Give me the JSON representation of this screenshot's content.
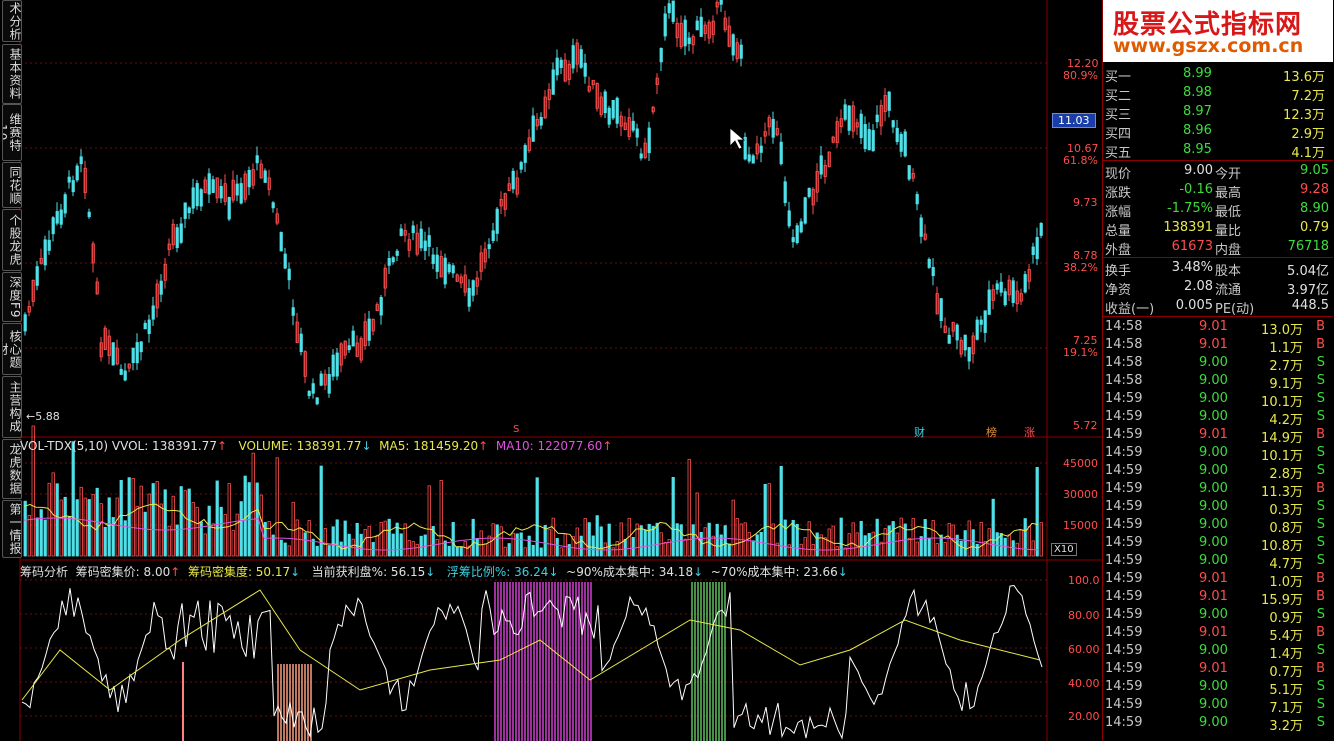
{
  "sidebar": {
    "tabs": [
      "术分析",
      "基本资料",
      "维赛特10",
      "同花顺",
      "个股龙虎",
      "深度F9",
      "核心题材",
      "主营构成",
      "龙虎数据",
      "第一情报"
    ]
  },
  "price_axis": [
    "12.20",
    "80.9%",
    "10.67",
    "61.8%",
    "9.73",
    "8.78",
    "38.2%",
    "7.25",
    "19.1%",
    "5.72"
  ],
  "current_price_tag": "11.03",
  "low_marker": "5.88",
  "event_markers": {
    "s": "S",
    "cai": "财",
    "bang": "榜",
    "zhang": "涨"
  },
  "volume_panel": {
    "name": "VOL-TDX(5,10)",
    "vvol": "VVOL: 138391.77",
    "volume": "VOLUME: 138391.77",
    "ma5": "MA5: 181459.20",
    "ma10": "MA10: 122077.60",
    "axis": [
      "45000",
      "30000",
      "15000"
    ],
    "unit": "X10"
  },
  "chip_panel": {
    "name": "筹码分析",
    "price": "筹码密集价: 8.00",
    "density": "筹码密集度: 50.17",
    "profit": "当前获利盘%: 56.15",
    "float": "浮筹比例%: 36.24",
    "c90": "~90%成本集中: 34.18",
    "c70": "~70%成本集中: 23.66",
    "axis": [
      "100.0",
      "80.00",
      "60.00",
      "40.00",
      "20.00"
    ]
  },
  "logo": {
    "title": "股票公式指标网",
    "url": "www.gszx.com.cn"
  },
  "quotes": {
    "bids": [
      {
        "label": "买一",
        "price": "8.99",
        "vol": "13.6万"
      },
      {
        "label": "买二",
        "price": "8.98",
        "vol": "7.2万"
      },
      {
        "label": "买三",
        "price": "8.97",
        "vol": "12.3万"
      },
      {
        "label": "买四",
        "price": "8.96",
        "vol": "2.9万"
      },
      {
        "label": "买五",
        "price": "8.95",
        "vol": "4.1万"
      }
    ],
    "stats": [
      {
        "l1": "现价",
        "v1": "9.00",
        "l2": "今开",
        "v2": "9.05"
      },
      {
        "l1": "涨跌",
        "v1": "-0.16",
        "l2": "最高",
        "v2": "9.28"
      },
      {
        "l1": "涨幅",
        "v1": "-1.75%",
        "l2": "最低",
        "v2": "8.90"
      },
      {
        "l1": "总量",
        "v1": "138391",
        "l2": "量比",
        "v2": "0.79"
      },
      {
        "l1": "外盘",
        "v1": "61673",
        "l2": "内盘",
        "v2": "76718"
      }
    ],
    "stats2": [
      {
        "l1": "换手",
        "v1": "3.48%",
        "l2": "股本",
        "v2": "5.04亿"
      },
      {
        "l1": "净资",
        "v1": "2.08",
        "l2": "流通",
        "v2": "3.97亿"
      },
      {
        "l1": "收益(一)",
        "v1": "0.005",
        "l2": "PE(动)",
        "v2": "448.5"
      }
    ]
  },
  "ticks": [
    {
      "t": "14:58",
      "p": "9.01",
      "v": "13.0万",
      "s": "B"
    },
    {
      "t": "14:58",
      "p": "9.01",
      "v": "1.1万",
      "s": "B"
    },
    {
      "t": "14:58",
      "p": "9.00",
      "v": "2.7万",
      "s": "S"
    },
    {
      "t": "14:58",
      "p": "9.00",
      "v": "9.1万",
      "s": "S"
    },
    {
      "t": "14:59",
      "p": "9.00",
      "v": "10.1万",
      "s": "S"
    },
    {
      "t": "14:59",
      "p": "9.00",
      "v": "4.2万",
      "s": "S"
    },
    {
      "t": "14:59",
      "p": "9.01",
      "v": "14.9万",
      "s": "B"
    },
    {
      "t": "14:59",
      "p": "9.00",
      "v": "10.1万",
      "s": "S"
    },
    {
      "t": "14:59",
      "p": "9.00",
      "v": "2.8万",
      "s": "S"
    },
    {
      "t": "14:59",
      "p": "9.00",
      "v": "11.3万",
      "s": "B"
    },
    {
      "t": "14:59",
      "p": "9.00",
      "v": "0.3万",
      "s": "S"
    },
    {
      "t": "14:59",
      "p": "9.00",
      "v": "0.8万",
      "s": "S"
    },
    {
      "t": "14:59",
      "p": "9.00",
      "v": "10.8万",
      "s": "S"
    },
    {
      "t": "14:59",
      "p": "9.00",
      "v": "4.7万",
      "s": "S"
    },
    {
      "t": "14:59",
      "p": "9.01",
      "v": "1.0万",
      "s": "B"
    },
    {
      "t": "14:59",
      "p": "9.01",
      "v": "15.9万",
      "s": "B"
    },
    {
      "t": "14:59",
      "p": "9.00",
      "v": "0.9万",
      "s": "S"
    },
    {
      "t": "14:59",
      "p": "9.01",
      "v": "5.4万",
      "s": "B"
    },
    {
      "t": "14:59",
      "p": "9.00",
      "v": "1.4万",
      "s": "S"
    },
    {
      "t": "14:59",
      "p": "9.01",
      "v": "0.7万",
      "s": "B"
    },
    {
      "t": "14:59",
      "p": "9.00",
      "v": "5.1万",
      "s": "S"
    },
    {
      "t": "14:59",
      "p": "9.00",
      "v": "7.1万",
      "s": "S"
    },
    {
      "t": "14:59",
      "p": "9.00",
      "v": "3.2万",
      "s": "S"
    }
  ]
}
